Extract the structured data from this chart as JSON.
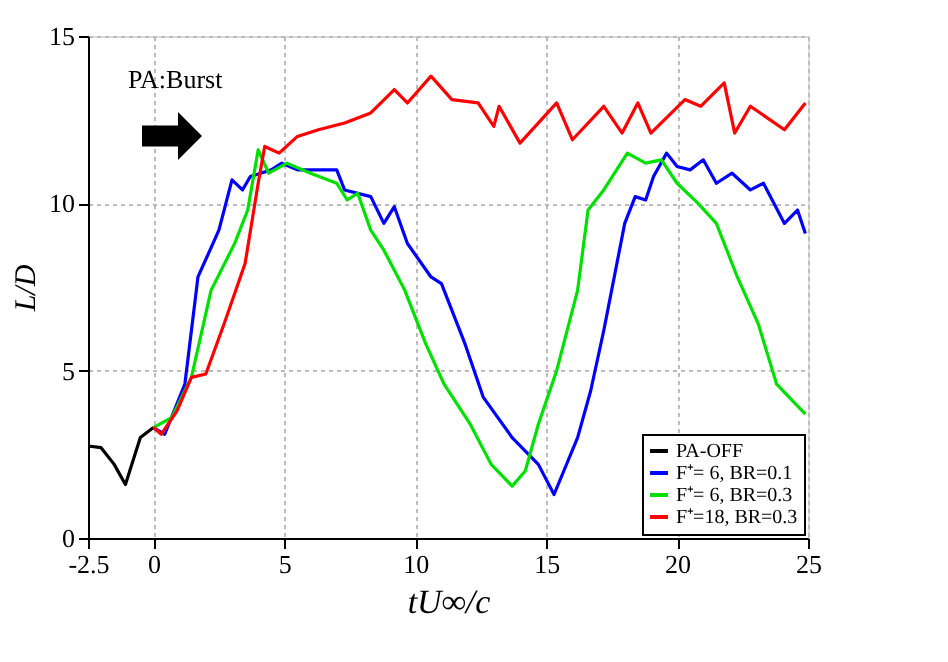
{
  "chart_data": {
    "type": "line",
    "xlabel": "tU∞/c",
    "ylabel": "L/D",
    "annotations": [
      "PA:Burst"
    ],
    "xlim": [
      -2.5,
      25
    ],
    "xticks": [
      -2.5,
      0,
      5,
      10,
      15,
      20,
      25
    ],
    "ylim": [
      0,
      15
    ],
    "yticks": [
      0,
      5,
      10,
      15
    ],
    "grid": true,
    "legend": "bottom right",
    "line_style": "solid",
    "series": [
      {
        "name": "PA-OFF",
        "color": "#000000",
        "x": [
          -2.5,
          -2.0,
          -1.5,
          -1.07,
          -0.5,
          0
        ],
        "values": [
          2.75,
          2.7,
          2.2,
          1.6,
          3.0,
          3.3
        ]
      },
      {
        "name": "F⁺=  6, BR=0.1",
        "color": "#0000ff",
        "x": [
          0,
          0.43,
          1.2,
          1.7,
          2.1,
          2.5,
          3.0,
          3.4,
          3.7,
          4.5,
          4.9,
          5.5,
          7.0,
          7.3,
          8.3,
          8.8,
          9.2,
          9.7,
          10.6,
          11.0,
          11.9,
          12.6,
          13.7,
          14.7,
          15.3,
          16.2,
          16.7,
          17.2,
          18.0,
          18.4,
          18.8,
          19.1,
          19.6,
          20.0,
          20.5,
          21.0,
          21.5,
          22.1,
          22.8,
          23.3,
          24.1,
          24.6,
          24.9
        ],
        "values": [
          3.3,
          3.1,
          4.6,
          7.8,
          8.5,
          9.2,
          10.7,
          10.4,
          10.8,
          11.0,
          11.2,
          11.0,
          11.0,
          10.4,
          10.2,
          9.4,
          9.9,
          8.8,
          7.8,
          7.6,
          5.8,
          4.2,
          3.0,
          2.2,
          1.3,
          3.0,
          4.4,
          6.2,
          9.4,
          10.2,
          10.1,
          10.8,
          11.5,
          11.1,
          11.0,
          11.3,
          10.6,
          10.9,
          10.4,
          10.6,
          9.4,
          9.8,
          9.1
        ]
      },
      {
        "name": "F⁺=  6, BR=0.3",
        "color": "#00e000",
        "x": [
          0,
          0.7,
          1.45,
          2.2,
          3.1,
          3.6,
          4.0,
          4.4,
          5.1,
          6.0,
          7.0,
          7.4,
          7.8,
          8.3,
          8.8,
          9.6,
          10.4,
          11.1,
          12.1,
          12.9,
          13.7,
          14.2,
          14.7,
          15.4,
          16.2,
          16.6,
          17.2,
          18.1,
          18.8,
          19.4,
          20.0,
          20.8,
          21.5,
          22.3,
          23.1,
          23.8,
          24.9
        ],
        "values": [
          3.3,
          3.6,
          4.8,
          7.4,
          8.8,
          9.8,
          11.6,
          10.9,
          11.2,
          10.9,
          10.6,
          10.1,
          10.3,
          9.2,
          8.6,
          7.4,
          5.8,
          4.6,
          3.4,
          2.2,
          1.55,
          2.0,
          3.4,
          5.0,
          7.4,
          9.8,
          10.4,
          11.5,
          11.2,
          11.3,
          10.6,
          10.0,
          9.4,
          7.8,
          6.4,
          4.6,
          3.7
        ]
      },
      {
        "name": "F⁺=18, BR=0.3",
        "color": "#ff0000",
        "x": [
          0,
          0.3,
          0.9,
          1.45,
          2.0,
          2.7,
          3.5,
          4.0,
          4.25,
          4.8,
          5.5,
          6.3,
          7.3,
          8.3,
          9.2,
          9.7,
          10.6,
          11.4,
          12.4,
          13.0,
          13.2,
          14.0,
          15.4,
          16.0,
          17.2,
          17.9,
          18.5,
          19.0,
          20.3,
          20.9,
          21.8,
          22.2,
          22.8,
          24.1,
          24.9
        ],
        "values": [
          3.3,
          3.1,
          3.8,
          4.8,
          4.9,
          6.4,
          8.2,
          10.6,
          11.7,
          11.5,
          12.0,
          12.2,
          12.4,
          12.7,
          13.4,
          13.0,
          13.8,
          13.1,
          13.0,
          12.3,
          12.9,
          11.8,
          13.0,
          11.9,
          12.9,
          12.1,
          13.0,
          12.1,
          13.1,
          12.9,
          13.6,
          12.1,
          12.9,
          12.2,
          13.0
        ]
      }
    ]
  }
}
